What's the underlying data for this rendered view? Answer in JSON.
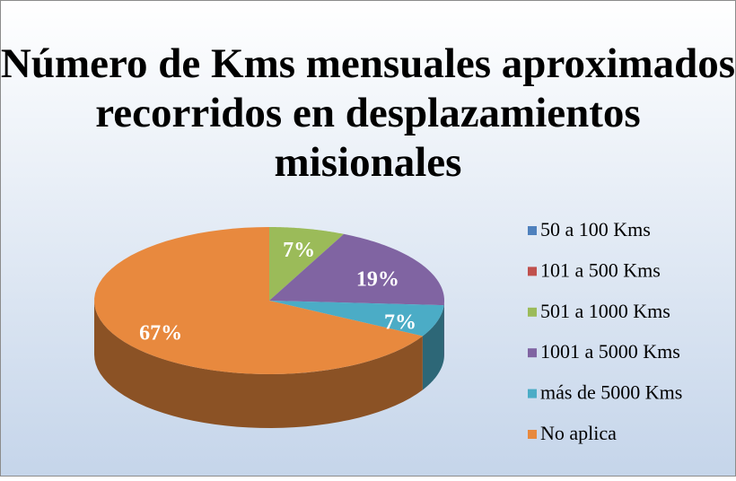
{
  "chart_data": {
    "type": "pie",
    "title": "Número de Kms mensuales aproximados recorridos en desplazamientos misionales",
    "categories": [
      "50 a 100 Kms",
      "101 a 500 Kms",
      "501 a 1000 Kms",
      "1001 a 5000 Kms",
      "más de 5000 Kms",
      "No aplica"
    ],
    "values": [
      0,
      0,
      7,
      19,
      7,
      67
    ],
    "value_labels": [
      null,
      null,
      "7%",
      "19%",
      "7%",
      "67%"
    ],
    "colors": [
      "#4f81bd",
      "#c0504d",
      "#9bbb59",
      "#8064a2",
      "#4bacc6",
      "#e8893e"
    ],
    "legend": "right"
  }
}
